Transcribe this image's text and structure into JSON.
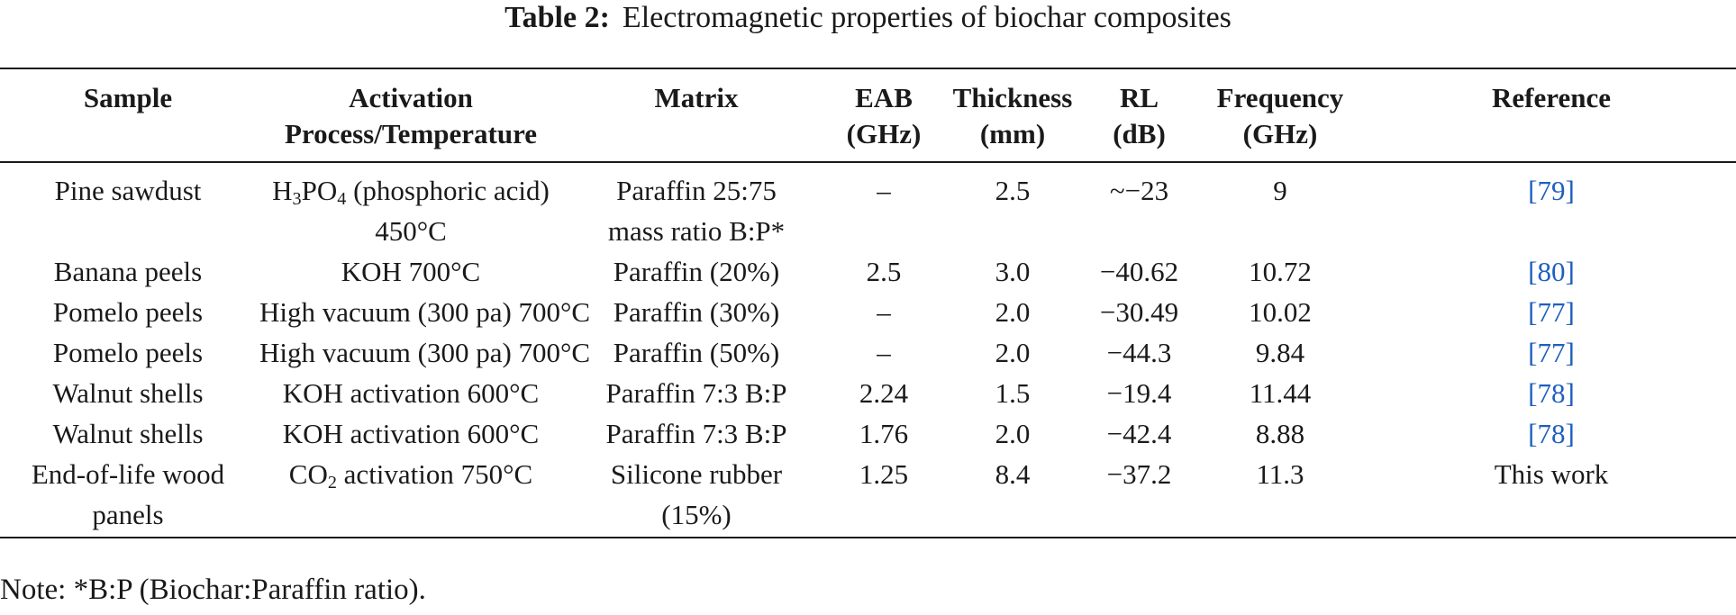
{
  "caption": {
    "label": "Table 2:",
    "text": "Electromagnetic properties of biochar composites"
  },
  "headers": [
    {
      "line1": "Sample",
      "line2": ""
    },
    {
      "line1": "Activation",
      "line2": "Process/Temperature"
    },
    {
      "line1": "Matrix",
      "line2": ""
    },
    {
      "line1": "EAB",
      "line2": "(GHz)"
    },
    {
      "line1": "Thickness",
      "line2": "(mm)"
    },
    {
      "line1": "RL",
      "line2": "(dB)"
    },
    {
      "line1": "Frequency",
      "line2": "(GHz)"
    },
    {
      "line1": "Reference",
      "line2": ""
    }
  ],
  "rows": [
    {
      "sample": "Pine sawdust",
      "activation_pre": "H",
      "activation_sub1": "3",
      "activation_mid": "PO",
      "activation_sub2": "4",
      "activation_post": " (phosphoric acid)",
      "activation_line2": "450°C",
      "matrix": "Paraffin 25:75",
      "matrix_line2": "mass ratio B:P*",
      "eab": "–",
      "thickness": "2.5",
      "rl": "~−23",
      "frequency": "9",
      "reference": "[79]"
    },
    {
      "sample": "Banana peels",
      "activation": "KOH 700°C",
      "matrix": "Paraffin (20%)",
      "eab": "2.5",
      "thickness": "3.0",
      "rl": "−40.62",
      "frequency": "10.72",
      "reference": "[80]"
    },
    {
      "sample": "Pomelo peels",
      "activation": "High vacuum (300 pa) 700°C",
      "matrix": "Paraffin (30%)",
      "eab": "–",
      "thickness": "2.0",
      "rl": "−30.49",
      "frequency": "10.02",
      "reference": "[77]"
    },
    {
      "sample": "Pomelo peels",
      "activation": "High vacuum (300 pa) 700°C",
      "matrix": "Paraffin (50%)",
      "eab": "–",
      "thickness": "2.0",
      "rl": "−44.3",
      "frequency": "9.84",
      "reference": "[77]"
    },
    {
      "sample": "Walnut shells",
      "activation": "KOH activation 600°C",
      "matrix": "Paraffin 7:3 B:P",
      "eab": "2.24",
      "thickness": "1.5",
      "rl": "−19.4",
      "frequency": "11.44",
      "reference": "[78]"
    },
    {
      "sample": "Walnut shells",
      "activation": "KOH activation 600°C",
      "matrix": "Paraffin 7:3 B:P",
      "eab": "1.76",
      "thickness": "2.0",
      "rl": "−42.4",
      "frequency": "8.88",
      "reference": "[78]"
    },
    {
      "sample": "End-of-life wood",
      "sample_line2": "panels",
      "activation_pre": "CO",
      "activation_sub1": "2",
      "activation_post": " activation 750°C",
      "matrix": "Silicone rubber",
      "matrix_line2": "(15%)",
      "eab": "1.25",
      "thickness": "8.4",
      "rl": "−37.2",
      "frequency": "11.3",
      "reference": "This work"
    }
  ],
  "note": "Note: *B:P (Biochar:Paraffin ratio).",
  "colors": {
    "text": "#1a1a1a",
    "reference_link": "#1f5fbf"
  }
}
